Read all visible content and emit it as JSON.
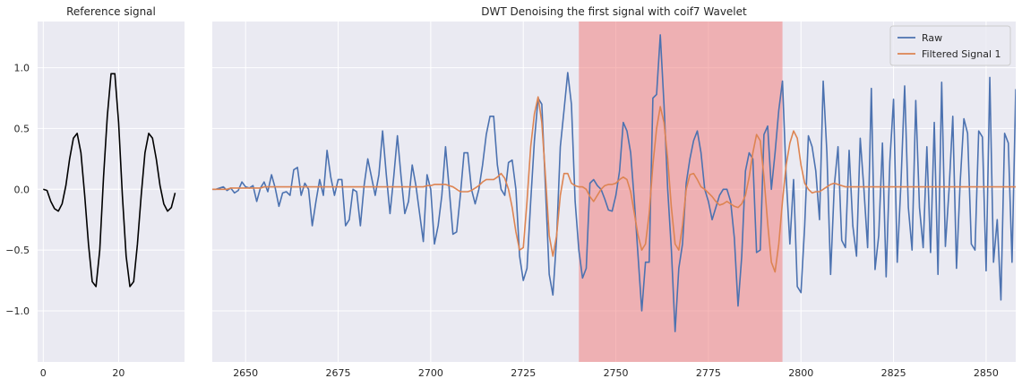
{
  "chart_data": [
    {
      "type": "line",
      "title": "Reference signal",
      "xlabel": "",
      "ylabel": "",
      "xlim": [
        -1.5,
        37.5
      ],
      "ylim": [
        -1.42,
        1.38
      ],
      "xticks": [
        0,
        20
      ],
      "xtick_labels": [
        "0",
        "20"
      ],
      "yticks": [
        -1.0,
        -0.5,
        0.0,
        0.5,
        1.0
      ],
      "ytick_labels": [
        "−1.0",
        "−0.5",
        "0.0",
        "0.5",
        "1.0"
      ],
      "grid": true,
      "series": [
        {
          "color": "#000000",
          "x": [
            0,
            1,
            2,
            3,
            4,
            5,
            6,
            7,
            8,
            9,
            10,
            11,
            12,
            13,
            14,
            15,
            16,
            17,
            18,
            19,
            20,
            21,
            22,
            23,
            24,
            25,
            26,
            27,
            28,
            29,
            30,
            31,
            32,
            33,
            34,
            35
          ],
          "y": [
            0.0,
            -0.01,
            -0.1,
            -0.16,
            -0.18,
            -0.12,
            0.03,
            0.25,
            0.42,
            0.46,
            0.3,
            -0.05,
            -0.45,
            -0.76,
            -0.8,
            -0.5,
            0.1,
            0.6,
            0.95,
            0.95,
            0.55,
            -0.05,
            -0.55,
            -0.8,
            -0.76,
            -0.45,
            -0.05,
            0.3,
            0.46,
            0.42,
            0.25,
            0.03,
            -0.12,
            -0.18,
            -0.15,
            -0.03
          ]
        }
      ]
    },
    {
      "type": "line",
      "title": "DWT Denoising the first signal with coif7 Wavelet",
      "xlabel": "",
      "ylabel": "",
      "xlim": [
        2641,
        2858
      ],
      "ylim": [
        -1.42,
        1.38
      ],
      "xticks": [
        2650,
        2675,
        2700,
        2725,
        2750,
        2775,
        2800,
        2825,
        2850
      ],
      "xtick_labels": [
        "2650",
        "2675",
        "2700",
        "2725",
        "2750",
        "2775",
        "2800",
        "2825",
        "2850"
      ],
      "yticks": [
        -1.0,
        -0.5,
        0.0,
        0.5,
        1.0
      ],
      "grid": true,
      "legend_position": "top-right",
      "highlight_span": {
        "x0": 2740,
        "x1": 2795,
        "color": "#f08080",
        "opacity": 0.55
      },
      "series": [
        {
          "name": "Raw",
          "color": "#4c72b0",
          "x_start": 2641,
          "x_step": 1,
          "y": [
            0.0,
            0.0,
            0.01,
            0.02,
            -0.01,
            0.01,
            -0.03,
            -0.01,
            0.06,
            0.02,
            0.01,
            0.03,
            -0.1,
            0.01,
            0.06,
            -0.02,
            0.12,
            0.01,
            -0.14,
            -0.03,
            -0.02,
            -0.05,
            0.16,
            0.18,
            -0.05,
            0.05,
            0.0,
            -0.3,
            -0.1,
            0.08,
            -0.05,
            0.32,
            0.1,
            -0.05,
            0.08,
            0.08,
            -0.3,
            -0.25,
            0.0,
            -0.02,
            -0.3,
            0.03,
            0.25,
            0.1,
            -0.05,
            0.12,
            0.48,
            0.12,
            -0.2,
            0.1,
            0.44,
            0.1,
            -0.2,
            -0.1,
            0.2,
            0.03,
            -0.2,
            -0.43,
            0.12,
            0.0,
            -0.45,
            -0.3,
            -0.05,
            0.35,
            0.0,
            -0.37,
            -0.35,
            -0.05,
            0.3,
            0.3,
            0.0,
            -0.12,
            0.0,
            0.2,
            0.45,
            0.6,
            0.6,
            0.2,
            0.0,
            -0.05,
            0.22,
            0.24,
            0.0,
            -0.55,
            -0.75,
            -0.65,
            -0.1,
            0.4,
            0.75,
            0.7,
            0.0,
            -0.7,
            -0.87,
            -0.4,
            0.35,
            0.65,
            0.96,
            0.7,
            -0.1,
            -0.5,
            -0.73,
            -0.65,
            0.05,
            0.08,
            0.03,
            0.0,
            -0.08,
            -0.17,
            -0.18,
            -0.05,
            0.15,
            0.55,
            0.48,
            0.3,
            -0.1,
            -0.55,
            -1.0,
            -0.6,
            -0.6,
            0.75,
            0.78,
            1.27,
            0.7,
            0.0,
            -0.5,
            -1.17,
            -0.65,
            -0.45,
            0.05,
            0.25,
            0.4,
            0.48,
            0.3,
            0.0,
            -0.1,
            -0.25,
            -0.15,
            -0.05,
            0.0,
            0.0,
            -0.1,
            -0.4,
            -0.96,
            -0.55,
            0.15,
            0.3,
            0.25,
            -0.52,
            -0.5,
            0.45,
            0.52,
            0.0,
            0.3,
            0.65,
            0.89,
            0.1,
            -0.45,
            0.08,
            -0.8,
            -0.85,
            -0.3,
            0.44,
            0.35,
            0.15,
            -0.25,
            0.89,
            0.3,
            -0.7,
            0.03,
            0.35,
            -0.42,
            -0.48,
            0.32,
            -0.3,
            -0.55,
            0.42,
            0.0,
            -0.48,
            0.83,
            -0.66,
            -0.38,
            0.38,
            -0.72,
            0.23,
            0.74,
            -0.6,
            0.05,
            0.85,
            -0.15,
            -0.5,
            0.73,
            -0.15,
            -0.48,
            0.35,
            -0.52,
            0.55,
            -0.7,
            0.88,
            -0.47,
            0.0,
            0.6,
            -0.65,
            0.06,
            0.58,
            0.46,
            -0.45,
            -0.5,
            0.48,
            0.43,
            -0.67,
            0.92,
            -0.6,
            -0.25,
            -0.91,
            0.46,
            0.38,
            -0.6,
            0.82,
            -0.85,
            0.3,
            0.08
          ]
        },
        {
          "name": "Filtered Signal 1",
          "color": "#dd8452",
          "x_start": 2641,
          "x_step": 1,
          "y": [
            0.0,
            0.0,
            0.0,
            0.0,
            0.0,
            0.01,
            0.01,
            0.01,
            0.01,
            0.01,
            0.01,
            0.01,
            0.01,
            0.01,
            0.02,
            0.02,
            0.02,
            0.02,
            0.02,
            0.02,
            0.02,
            0.02,
            0.02,
            0.02,
            0.02,
            0.02,
            0.02,
            0.02,
            0.02,
            0.02,
            0.02,
            0.02,
            0.02,
            0.02,
            0.02,
            0.02,
            0.02,
            0.02,
            0.02,
            0.02,
            0.02,
            0.02,
            0.02,
            0.02,
            0.02,
            0.02,
            0.02,
            0.02,
            0.02,
            0.02,
            0.02,
            0.02,
            0.02,
            0.02,
            0.02,
            0.02,
            0.02,
            0.02,
            0.03,
            0.03,
            0.04,
            0.04,
            0.04,
            0.04,
            0.03,
            0.02,
            0.0,
            -0.02,
            -0.02,
            -0.02,
            -0.01,
            0.01,
            0.03,
            0.06,
            0.08,
            0.08,
            0.08,
            0.1,
            0.13,
            0.09,
            0.0,
            -0.15,
            -0.35,
            -0.5,
            -0.48,
            -0.1,
            0.35,
            0.62,
            0.76,
            0.55,
            0.1,
            -0.38,
            -0.55,
            -0.38,
            -0.05,
            0.13,
            0.13,
            0.05,
            0.03,
            0.02,
            0.02,
            0.0,
            -0.06,
            -0.1,
            -0.05,
            0.0,
            0.03,
            0.04,
            0.04,
            0.05,
            0.08,
            0.1,
            0.08,
            -0.02,
            -0.2,
            -0.38,
            -0.5,
            -0.45,
            -0.2,
            0.2,
            0.5,
            0.68,
            0.55,
            0.25,
            -0.15,
            -0.45,
            -0.5,
            -0.3,
            0.0,
            0.12,
            0.13,
            0.08,
            0.02,
            0.0,
            -0.03,
            -0.06,
            -0.1,
            -0.13,
            -0.12,
            -0.1,
            -0.12,
            -0.14,
            -0.15,
            -0.12,
            -0.05,
            0.1,
            0.3,
            0.45,
            0.4,
            0.1,
            -0.28,
            -0.6,
            -0.68,
            -0.45,
            -0.1,
            0.2,
            0.38,
            0.48,
            0.42,
            0.2,
            0.05,
            0.0,
            -0.03,
            -0.02,
            -0.02,
            0.0,
            0.02,
            0.04,
            0.05,
            0.04,
            0.03,
            0.02,
            0.02,
            0.02,
            0.02,
            0.02,
            0.02,
            0.02,
            0.02,
            0.02,
            0.02,
            0.02,
            0.02,
            0.02,
            0.02,
            0.02,
            0.02,
            0.02,
            0.02,
            0.02,
            0.02,
            0.02,
            0.02,
            0.02,
            0.02,
            0.02,
            0.02,
            0.02,
            0.02,
            0.02,
            0.02,
            0.02,
            0.02,
            0.02,
            0.02,
            0.02,
            0.02,
            0.02,
            0.02,
            0.02,
            0.02,
            0.02,
            0.02,
            0.02,
            0.02,
            0.02,
            0.02,
            0.02,
            0.02,
            0.02,
            0.02,
            0.02,
            0.02,
            0.02
          ]
        }
      ]
    }
  ]
}
